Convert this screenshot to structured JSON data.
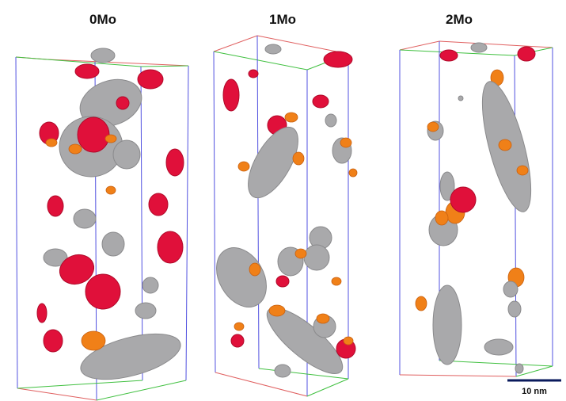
{
  "panels": [
    {
      "label": "0Mo"
    },
    {
      "label": "1Mo"
    },
    {
      "label": "2Mo"
    }
  ],
  "scale_bar": {
    "label": "10 nm"
  }
}
